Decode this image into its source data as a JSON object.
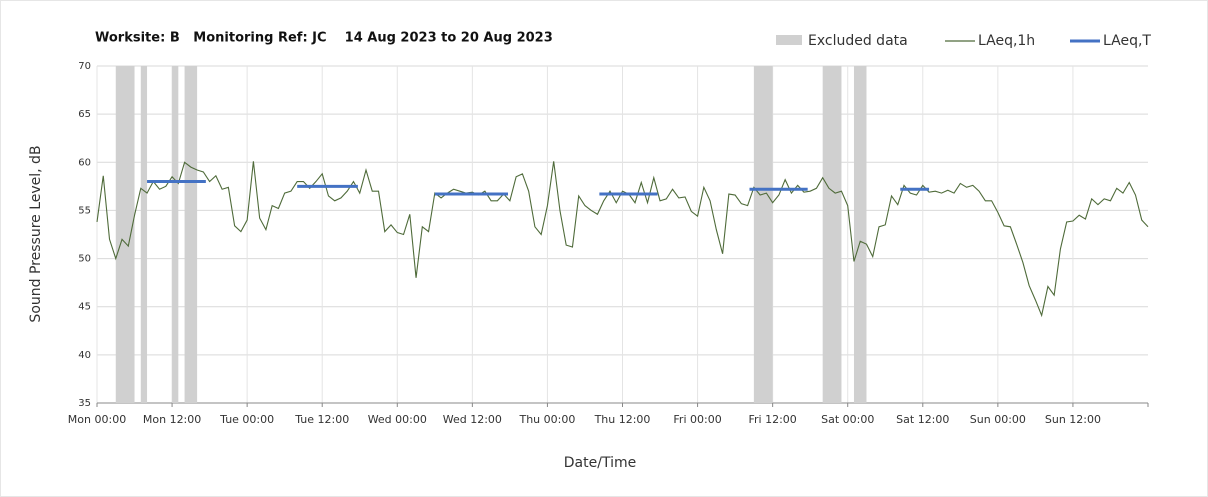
{
  "chart_data": {
    "type": "line",
    "title": "Worksite: B   Monitoring Ref: JC    14 Aug 2023 to 20 Aug 2023",
    "xlabel": "Date/Time",
    "ylabel": "Sound Pressure Level, dB",
    "xlim": [
      0,
      168
    ],
    "ylim": [
      35,
      70
    ],
    "yticks": [
      35,
      40,
      45,
      50,
      55,
      60,
      65,
      70
    ],
    "xticks": [
      {
        "value": 0,
        "label": "Mon 00:00"
      },
      {
        "value": 12,
        "label": "Mon 12:00"
      },
      {
        "value": 24,
        "label": "Tue 00:00"
      },
      {
        "value": 36,
        "label": "Tue 12:00"
      },
      {
        "value": 48,
        "label": "Wed 00:00"
      },
      {
        "value": 60,
        "label": "Wed 12:00"
      },
      {
        "value": 72,
        "label": "Thu 00:00"
      },
      {
        "value": 84,
        "label": "Thu 12:00"
      },
      {
        "value": 96,
        "label": "Fri 00:00"
      },
      {
        "value": 108,
        "label": "Fri 12:00"
      },
      {
        "value": 120,
        "label": "Sat 00:00"
      },
      {
        "value": 132,
        "label": "Sat 12:00"
      },
      {
        "value": 144,
        "label": "Sun 00:00"
      },
      {
        "value": 156,
        "label": "Sun 12:00"
      }
    ],
    "grid": true,
    "excluded": {
      "name": "Excluded data",
      "color": "#d0d0d0",
      "ranges": [
        [
          3,
          6
        ],
        [
          7,
          8
        ],
        [
          12,
          13
        ],
        [
          14,
          16
        ],
        [
          105,
          108
        ],
        [
          116,
          119
        ],
        [
          121,
          123
        ]
      ]
    },
    "series": [
      {
        "name": "LAeq,1h",
        "color": "#4f6b3a",
        "x": [
          0,
          1,
          2,
          3,
          4,
          5,
          6,
          7,
          8,
          9,
          10,
          11,
          12,
          13,
          14,
          15,
          16,
          17,
          18,
          19,
          20,
          21,
          22,
          23,
          24,
          25,
          26,
          27,
          28,
          29,
          30,
          31,
          32,
          33,
          34,
          35,
          36,
          37,
          38,
          39,
          40,
          41,
          42,
          43,
          44,
          45,
          46,
          47,
          48,
          49,
          50,
          51,
          52,
          53,
          54,
          55,
          56,
          57,
          58,
          59,
          60,
          61,
          62,
          63,
          64,
          65,
          66,
          67,
          68,
          69,
          70,
          71,
          72,
          73,
          74,
          75,
          76,
          77,
          78,
          79,
          80,
          81,
          82,
          83,
          84,
          85,
          86,
          87,
          88,
          89,
          90,
          91,
          92,
          93,
          94,
          95,
          96,
          97,
          98,
          99,
          100,
          101,
          102,
          103,
          104,
          105,
          106,
          107,
          108,
          109,
          110,
          111,
          112,
          113,
          114,
          115,
          116,
          117,
          118,
          119,
          120,
          121,
          122,
          123,
          124,
          125,
          126,
          127,
          128,
          129,
          130,
          131,
          132,
          133,
          134,
          135,
          136,
          137,
          138,
          139,
          140,
          141,
          142,
          143,
          144,
          145,
          146,
          147,
          148,
          149,
          150,
          151,
          152,
          153,
          154,
          155,
          156,
          157,
          158,
          159,
          160,
          161,
          162,
          163,
          164,
          165,
          166,
          167,
          168
        ],
        "values": [
          53.8,
          58.6,
          52,
          50,
          52,
          51.3,
          54.5,
          57.3,
          56.8,
          58,
          57.2,
          57.5,
          58.5,
          57.8,
          60,
          59.5,
          59.2,
          59,
          58,
          58.6,
          57.2,
          57.4,
          53.4,
          52.8,
          54,
          60.1,
          54.2,
          53,
          55.5,
          55.2,
          56.8,
          57,
          58,
          58,
          57.3,
          58,
          58.8,
          56.5,
          56,
          56.3,
          57,
          58,
          56.8,
          59.2,
          57,
          57,
          52.8,
          53.5,
          52.7,
          52.5,
          54.6,
          48,
          53.3,
          52.8,
          56.8,
          56.3,
          56.8,
          57.2,
          57,
          56.8,
          56.9,
          56.6,
          57,
          56,
          56,
          56.7,
          56,
          58.5,
          58.8,
          57,
          53.3,
          52.5,
          55.5,
          60.1,
          55,
          51.4,
          51.2,
          56.5,
          55.5,
          55,
          54.6,
          56,
          57,
          55.8,
          57,
          56.7,
          55.8,
          57.9,
          55.8,
          58.4,
          56,
          56.2,
          57.2,
          56.3,
          56.4,
          54.9,
          54.4,
          57.4,
          56,
          53,
          50.5,
          56.7,
          56.6,
          55.7,
          55.5,
          57.4,
          56.6,
          56.8,
          55.8,
          56.6,
          58.2,
          56.8,
          57.6,
          56.9,
          57,
          57.3,
          58.4,
          57.3,
          56.8,
          57,
          55.5,
          49.7,
          51.8,
          51.5,
          50.2,
          53.3,
          53.5,
          56.5,
          55.6,
          57.6,
          56.8,
          56.6,
          57.6,
          56.9,
          57,
          56.8,
          57.1,
          56.8,
          57.8,
          57.4,
          57.6,
          57,
          56,
          56,
          54.8,
          53.4,
          53.3,
          51.5,
          49.6,
          47.2,
          45.7,
          44.1,
          47.1,
          46.2,
          51,
          53.8,
          53.9,
          54.5,
          54.1,
          56.2,
          55.6,
          56.2,
          56,
          57.3,
          56.8,
          57.9,
          56.6,
          54,
          53.3
        ]
      },
      {
        "name": "LAeq,T",
        "color": "#4472c4",
        "starts": [
          8,
          32,
          54,
          80.3,
          104.3,
          128.4
        ],
        "ends": [
          17.4,
          41.7,
          65.7,
          89.6,
          113.6,
          133
        ],
        "values": [
          58,
          57.5,
          56.7,
          56.7,
          57.2,
          57.2
        ]
      }
    ]
  }
}
